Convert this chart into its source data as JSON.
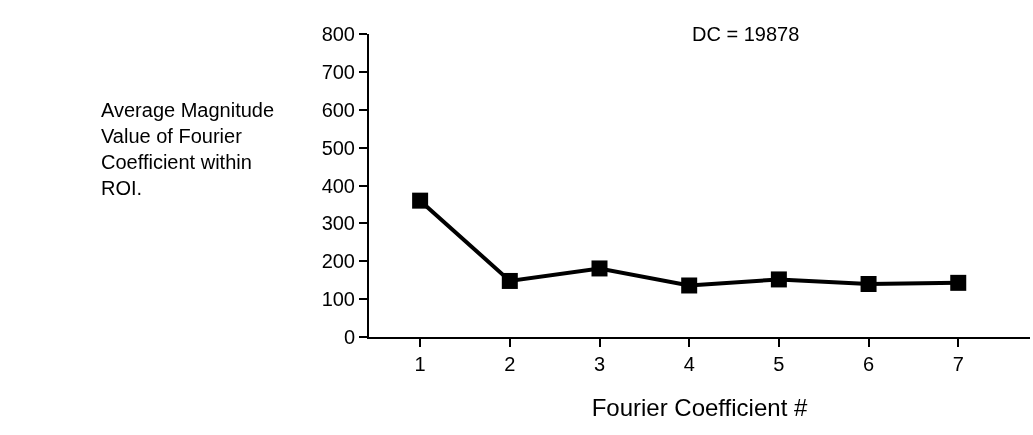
{
  "chart_data": {
    "type": "line",
    "xlabel": "Fourier Coefficient #",
    "ylabel": "Average Magnitude Value of Fourier Coefficient within ROI.",
    "annotations": [
      "DC = 19878"
    ],
    "x": [
      1,
      2,
      3,
      4,
      5,
      6,
      7
    ],
    "series": [
      {
        "color": "#000000",
        "values": [
          360,
          148,
          181,
          136,
          152,
          140,
          143
        ]
      }
    ],
    "xlim": [
      0.43,
      7.8
    ],
    "xticks": [
      1,
      2,
      3,
      4,
      5,
      6,
      7
    ],
    "ylim": [
      0,
      800
    ],
    "yticks": [
      0,
      100,
      200,
      300,
      400,
      500,
      600,
      700,
      800
    ],
    "marker": "square",
    "line_style": "solid",
    "legend": false
  }
}
